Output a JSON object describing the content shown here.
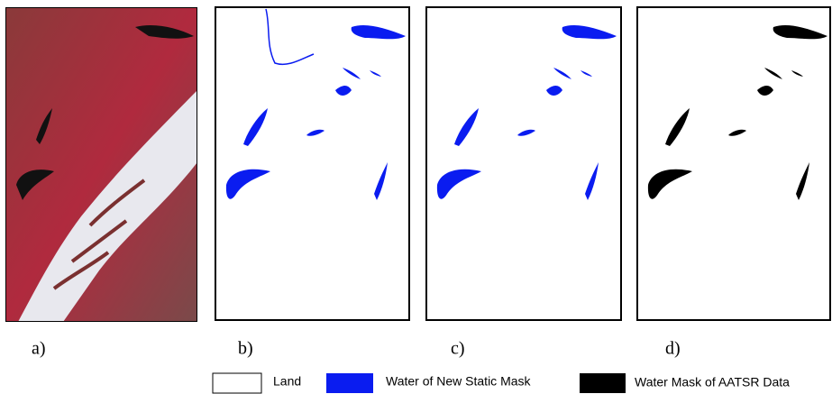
{
  "panels": {
    "labels": [
      "a)",
      "b)",
      "c)",
      "d)"
    ]
  },
  "legend": {
    "items": [
      "Land",
      "Water of New Static Mask",
      "Water Mask of AATSR Data"
    ]
  }
}
